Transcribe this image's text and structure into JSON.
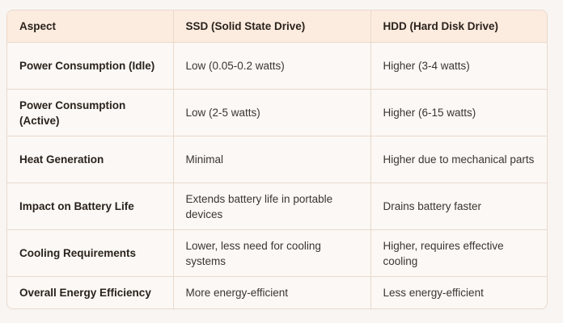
{
  "table": {
    "headers": [
      "Aspect",
      "SSD (Solid State Drive)",
      "HDD (Hard Disk Drive)"
    ],
    "rows": [
      [
        "Power Consumption (Idle)",
        "Low (0.05-0.2 watts)",
        "Higher (3-4 watts)"
      ],
      [
        "Power Consumption (Active)",
        "Low (2-5 watts)",
        "Higher (6-15 watts)"
      ],
      [
        "Heat Generation",
        "Minimal",
        "Higher due to mechanical parts"
      ],
      [
        "Impact on Battery Life",
        "Extends battery life in portable devices",
        "Drains battery faster"
      ],
      [
        "Cooling Requirements",
        "Lower, less need for cooling systems",
        "Higher, requires effective cooling"
      ],
      [
        "Overall Energy Efficiency",
        "More energy-efficient",
        "Less energy-efficient"
      ]
    ]
  },
  "colors": {
    "header_bg": "#fcecdf",
    "border": "#ead9cc",
    "body_bg": "#fbf8f5",
    "page_bg": "#f8f5f2"
  }
}
